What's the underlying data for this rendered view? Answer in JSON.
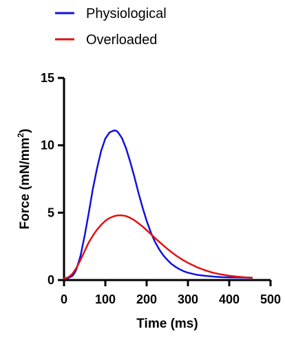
{
  "chart_data": {
    "type": "line",
    "xlabel": "Time (ms)",
    "ylabel_main": "Force (mN/mm",
    "ylabel_sup": "2",
    "ylabel_close": ")",
    "xlim": [
      0,
      500
    ],
    "ylim": [
      0,
      15
    ],
    "xticks": [
      0,
      100,
      200,
      300,
      400,
      500
    ],
    "yticks": [
      0,
      5,
      10,
      15
    ],
    "grid": false,
    "legend_position": "top",
    "series": [
      {
        "name": "Physiological",
        "color": "#1010e0",
        "x": [
          0,
          10,
          20,
          25,
          30,
          40,
          50,
          60,
          70,
          80,
          90,
          100,
          110,
          120,
          125,
          130,
          140,
          150,
          160,
          170,
          180,
          190,
          200,
          210,
          220,
          230,
          240,
          250,
          260,
          270,
          280,
          290,
          300,
          320,
          340,
          360,
          380,
          400,
          420,
          440,
          455
        ],
        "y": [
          0.1,
          0.15,
          0.3,
          0.5,
          0.8,
          1.8,
          3.3,
          5.0,
          6.8,
          8.3,
          9.6,
          10.5,
          10.95,
          11.1,
          11.1,
          11.0,
          10.55,
          9.8,
          8.8,
          7.7,
          6.5,
          5.4,
          4.4,
          3.55,
          2.85,
          2.3,
          1.85,
          1.5,
          1.2,
          0.98,
          0.8,
          0.65,
          0.55,
          0.4,
          0.32,
          0.26,
          0.22,
          0.2,
          0.19,
          0.18,
          0.17
        ]
      },
      {
        "name": "Overloaded",
        "color": "#e01010",
        "x": [
          0,
          10,
          20,
          30,
          40,
          50,
          60,
          70,
          80,
          90,
          100,
          110,
          120,
          130,
          140,
          150,
          160,
          170,
          180,
          190,
          200,
          210,
          220,
          230,
          240,
          250,
          260,
          270,
          280,
          290,
          300,
          320,
          340,
          360,
          380,
          400,
          420,
          440,
          455
        ],
        "y": [
          0.1,
          0.2,
          0.45,
          0.9,
          1.5,
          2.15,
          2.8,
          3.3,
          3.75,
          4.1,
          4.4,
          4.6,
          4.73,
          4.8,
          4.8,
          4.75,
          4.62,
          4.45,
          4.22,
          3.98,
          3.7,
          3.42,
          3.13,
          2.85,
          2.58,
          2.32,
          2.08,
          1.85,
          1.64,
          1.45,
          1.28,
          0.98,
          0.74,
          0.55,
          0.42,
          0.32,
          0.25,
          0.2,
          0.18
        ]
      }
    ]
  }
}
